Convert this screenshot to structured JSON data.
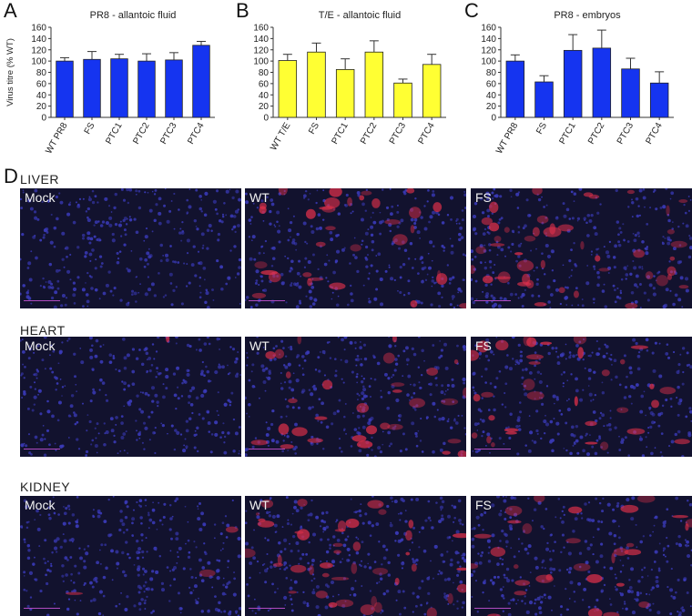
{
  "panels": {
    "A": "A",
    "B": "B",
    "C": "C",
    "D": "D"
  },
  "chart_data": [
    {
      "type": "bar",
      "title": "PR8 - allantoic fluid",
      "ylabel": "Virus titre (% WT)",
      "xlabel": "",
      "ylim": [
        0,
        160
      ],
      "yticks": [
        0,
        20,
        40,
        60,
        80,
        100,
        120,
        140,
        160
      ],
      "categories": [
        "WT PR8",
        "FS",
        "PTC1",
        "PTC2",
        "PTC3",
        "PTC4"
      ],
      "values": [
        100,
        103,
        104,
        100,
        102,
        128
      ],
      "errors": [
        6,
        14,
        8,
        13,
        13,
        7
      ],
      "color": "#1534f0"
    },
    {
      "type": "bar",
      "title": "T/E - allantoic fluid",
      "ylabel": "",
      "xlabel": "",
      "ylim": [
        0,
        160
      ],
      "yticks": [
        0,
        20,
        40,
        60,
        80,
        100,
        120,
        140,
        160
      ],
      "categories": [
        "WT T/E",
        "FS",
        "PTC1",
        "PTC2",
        "PTC3",
        "PTC4"
      ],
      "values": [
        101,
        116,
        85,
        116,
        61,
        94
      ],
      "errors": [
        11,
        16,
        19,
        20,
        7,
        18
      ],
      "color": "#ffff33"
    },
    {
      "type": "bar",
      "title": "PR8 - embryos",
      "ylabel": "",
      "xlabel": "",
      "ylim": [
        0,
        160
      ],
      "yticks": [
        0,
        20,
        40,
        60,
        80,
        100,
        120,
        140,
        160
      ],
      "categories": [
        "WT PR8",
        "FS",
        "PTC1",
        "PTC2",
        "PTC3",
        "PTC4"
      ],
      "values": [
        100,
        63,
        119,
        123,
        86,
        61
      ],
      "errors": [
        11,
        11,
        28,
        32,
        19,
        20
      ],
      "color": "#1534f0"
    }
  ],
  "micrographs": {
    "rows": [
      {
        "title": "LIVER",
        "labels": [
          "Mock",
          "WT",
          "FS"
        ]
      },
      {
        "title": "HEART",
        "labels": [
          "Mock",
          "WT",
          "FS"
        ]
      },
      {
        "title": "KIDNEY",
        "labels": [
          "Mock",
          "WT",
          "FS"
        ]
      }
    ],
    "colors": {
      "nuclei": "#3a3ab8",
      "stain": "#e0304a",
      "background": "#12122e"
    }
  }
}
